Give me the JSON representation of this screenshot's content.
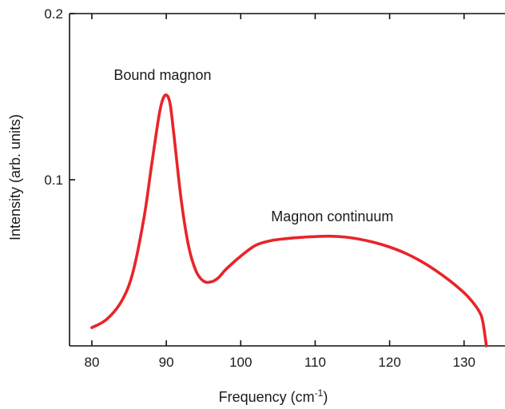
{
  "chart_data": {
    "type": "line",
    "title": "",
    "xlabel": "Frequency (cm",
    "xlabel_superscript": "-1",
    "xlabel_suffix": ")",
    "ylabel": "Intensity (arb. units)",
    "xlim": [
      77,
      135.5
    ],
    "ylim": [
      0,
      0.2
    ],
    "x_ticks": [
      80,
      90,
      100,
      110,
      120,
      130
    ],
    "x_tick_labels": [
      "80",
      "90",
      "100",
      "110",
      "120",
      "130"
    ],
    "y_ticks": [
      0.1,
      0.2
    ],
    "y_tick_labels": [
      "0.1",
      "0.2"
    ],
    "grid": false,
    "series": [
      {
        "color": "#e8242a",
        "x": [
          80,
          82,
          84,
          85.5,
          87,
          88,
          89,
          89.5,
          90,
          90.5,
          91,
          92,
          93,
          94,
          95,
          96,
          97,
          98,
          100,
          102,
          104,
          106,
          108,
          110,
          112,
          114,
          116,
          118,
          120,
          122,
          124,
          126,
          128,
          130,
          131,
          132,
          132.5,
          133
        ],
        "y": [
          0.011,
          0.016,
          0.027,
          0.044,
          0.077,
          0.108,
          0.138,
          0.148,
          0.151,
          0.146,
          0.128,
          0.088,
          0.06,
          0.045,
          0.039,
          0.0385,
          0.041,
          0.046,
          0.054,
          0.0605,
          0.0633,
          0.0645,
          0.0653,
          0.0658,
          0.066,
          0.0655,
          0.0642,
          0.0622,
          0.0595,
          0.056,
          0.0515,
          0.046,
          0.0395,
          0.032,
          0.0272,
          0.021,
          0.015,
          0
        ]
      }
    ],
    "annotations": [
      {
        "text": "Bound magnon",
        "x": 89.5,
        "y": 0.16
      },
      {
        "text": "Magnon continuum",
        "x": 112.3,
        "y": 0.075
      }
    ]
  }
}
